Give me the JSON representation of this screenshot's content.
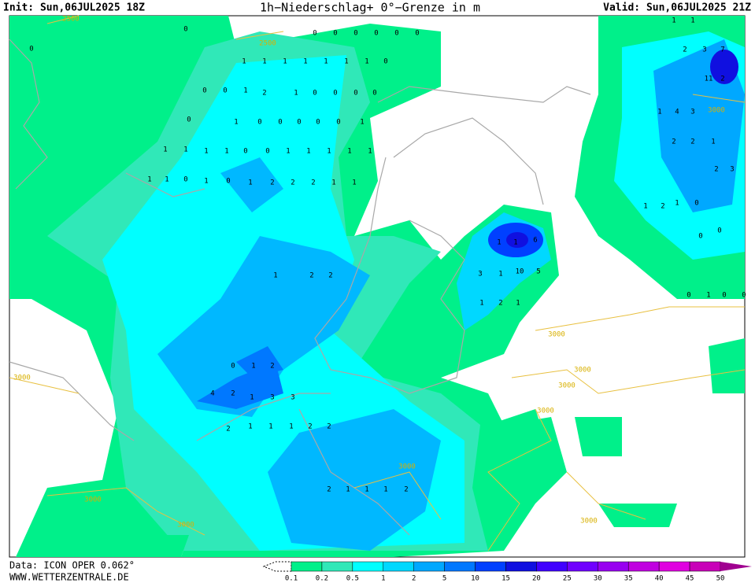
{
  "header": {
    "init": "Init: Sun,06JUL2025 18Z",
    "title": "1h−Niederschlag+ 0°−Grenze in m",
    "valid": "Valid: Sun,06JUL2025 21Z"
  },
  "footer": {
    "source": "Data: ICON OPER 0.062°",
    "site": "WWW.WETTERZENTRALE.DE"
  },
  "legend": {
    "levels": [
      0.1,
      0.2,
      0.5,
      1,
      2,
      5,
      10,
      15,
      20,
      25,
      30,
      35,
      40,
      45,
      50
    ],
    "colors": [
      "#00f08a",
      "#30e8b8",
      "#00ffff",
      "#00d8ff",
      "#00a8ff",
      "#0078ff",
      "#0040ff",
      "#1010e0",
      "#4000ff",
      "#7000ff",
      "#9800f0",
      "#c000e0",
      "#e000e0",
      "#c800b8",
      "#a00090"
    ]
  },
  "contour_labels": [
    "2500",
    "2500",
    "3000",
    "3000",
    "3000",
    "3000",
    "3000",
    "3000",
    "3000",
    "3000",
    "3000",
    "3000"
  ],
  "precip_labels": [
    0,
    0,
    0,
    0,
    0,
    0,
    0,
    0,
    1,
    1,
    1,
    1,
    1,
    1,
    1,
    0,
    0,
    0,
    1,
    2,
    1,
    0,
    0,
    0,
    0,
    0,
    1,
    0,
    0,
    0,
    0,
    0,
    1,
    1,
    1,
    1,
    1,
    0,
    0,
    1,
    1,
    1,
    1,
    1,
    1,
    1,
    0,
    1,
    0,
    1,
    2,
    2,
    2,
    1,
    1,
    1,
    1,
    0,
    2,
    4,
    2,
    1,
    3,
    3,
    2,
    1,
    1,
    1,
    2,
    2,
    2,
    1,
    1,
    1,
    2,
    2,
    2,
    1,
    1,
    6,
    10,
    5,
    1,
    2,
    1,
    1,
    3,
    1,
    1,
    2,
    3,
    7,
    11,
    2,
    4,
    3,
    1,
    2,
    2,
    1,
    2,
    3,
    1,
    2,
    1,
    0,
    0,
    0,
    0,
    1,
    0,
    0
  ]
}
